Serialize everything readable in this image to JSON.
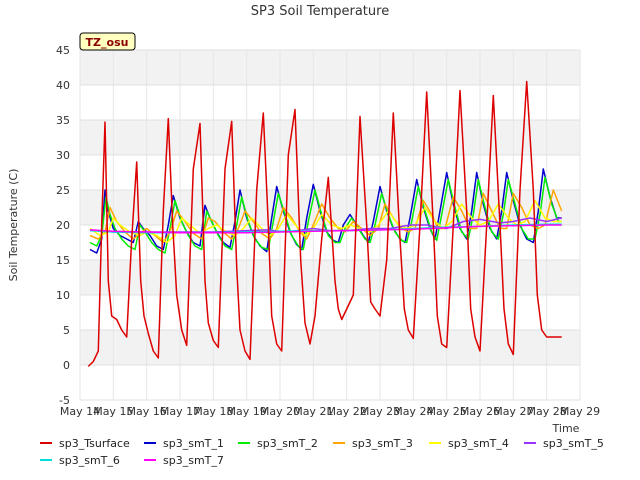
{
  "chart_data": {
    "type": "line",
    "title": "SP3 Soil Temperature",
    "xlabel": "Time",
    "ylabel": "Soil Temperature (C)",
    "ylim": [
      -5,
      45
    ],
    "xlim": [
      14,
      29
    ],
    "y_ticks": [
      -5,
      0,
      5,
      10,
      15,
      20,
      25,
      30,
      35,
      40,
      45
    ],
    "x_ticks": [
      {
        "value": 14,
        "label": "May 14"
      },
      {
        "value": 15,
        "label": "May 15"
      },
      {
        "value": 16,
        "label": "May 16"
      },
      {
        "value": 17,
        "label": "May 17"
      },
      {
        "value": 18,
        "label": "May 18"
      },
      {
        "value": 19,
        "label": "May 19"
      },
      {
        "value": 20,
        "label": "May 20"
      },
      {
        "value": 21,
        "label": "May 21"
      },
      {
        "value": 22,
        "label": "May 22"
      },
      {
        "value": 23,
        "label": "May 23"
      },
      {
        "value": 24,
        "label": "May 24"
      },
      {
        "value": 25,
        "label": "May 25"
      },
      {
        "value": 26,
        "label": "May 26"
      },
      {
        "value": 27,
        "label": "May 27"
      },
      {
        "value": 28,
        "label": "May 28"
      },
      {
        "value": 29,
        "label": "May 29"
      }
    ],
    "badge": "TZ_osu",
    "legend_position": "bottom",
    "series": [
      {
        "name": "sp3_Tsurface",
        "color": "#dd0000",
        "x": [
          14.25,
          14.4,
          14.55,
          14.65,
          14.75,
          14.85,
          14.95,
          15.1,
          15.25,
          15.4,
          15.55,
          15.7,
          15.82,
          15.92,
          16.05,
          16.2,
          16.35,
          16.5,
          16.65,
          16.78,
          16.9,
          17.05,
          17.2,
          17.4,
          17.6,
          17.75,
          17.85,
          18.0,
          18.15,
          18.35,
          18.55,
          18.7,
          18.8,
          18.95,
          19.1,
          19.3,
          19.5,
          19.65,
          19.75,
          19.9,
          20.05,
          20.25,
          20.45,
          20.62,
          20.75,
          20.9,
          21.05,
          21.25,
          21.45,
          21.65,
          21.75,
          21.85,
          22.0,
          22.2,
          22.4,
          22.6,
          22.72,
          22.85,
          23.0,
          23.2,
          23.4,
          23.6,
          23.73,
          23.85,
          24.0,
          24.2,
          24.4,
          24.6,
          24.72,
          24.85,
          25.0,
          25.2,
          25.4,
          25.6,
          25.72,
          25.85,
          26.0,
          26.2,
          26.4,
          26.6,
          26.72,
          26.85,
          27.0,
          27.2,
          27.4,
          27.6,
          27.72,
          27.85,
          28.0,
          28.2,
          28.35,
          28.45
        ],
        "y": [
          -0.2,
          0.5,
          2.0,
          20.0,
          34.7,
          12.0,
          7.0,
          6.5,
          5.0,
          4.0,
          18.0,
          29.0,
          12.0,
          7.0,
          4.5,
          2.0,
          1.0,
          22.0,
          35.2,
          20.0,
          10.0,
          5.0,
          2.8,
          28.0,
          34.5,
          12.0,
          6.0,
          3.5,
          2.5,
          28.0,
          34.8,
          14.0,
          5.0,
          2.0,
          0.8,
          25.0,
          36.0,
          20.0,
          7.0,
          3.0,
          2.0,
          30.0,
          36.5,
          15.0,
          6.0,
          3.0,
          7.0,
          18.0,
          26.8,
          12.0,
          8.0,
          6.5,
          8.0,
          10.0,
          35.5,
          20.0,
          9.0,
          8.0,
          7.0,
          15.0,
          36.0,
          18.0,
          8.0,
          5.0,
          3.8,
          20.0,
          39.0,
          20.0,
          7.0,
          3.0,
          2.5,
          20.0,
          39.2,
          22.0,
          8.0,
          4.0,
          2.0,
          20.0,
          38.5,
          20.0,
          8.0,
          3.0,
          1.5,
          25.0,
          40.5,
          25.0,
          10.0,
          5.0,
          4.0,
          4.0,
          4.0,
          4.0
        ]
      },
      {
        "name": "sp3_smT_1",
        "color": "#0000cc",
        "x": [
          14.3,
          14.5,
          14.65,
          14.75,
          14.85,
          15.0,
          15.2,
          15.4,
          15.6,
          15.75,
          15.9,
          16.1,
          16.3,
          16.5,
          16.65,
          16.8,
          17.0,
          17.2,
          17.4,
          17.6,
          17.75,
          17.9,
          18.1,
          18.3,
          18.5,
          18.65,
          18.8,
          19.0,
          19.2,
          19.4,
          19.6,
          19.75,
          19.9,
          20.1,
          20.3,
          20.5,
          20.65,
          20.8,
          21.0,
          21.2,
          21.4,
          21.6,
          21.75,
          21.9,
          22.1,
          22.3,
          22.5,
          22.65,
          22.8,
          23.0,
          23.2,
          23.4,
          23.6,
          23.75,
          23.9,
          24.1,
          24.3,
          24.5,
          24.65,
          24.8,
          25.0,
          25.2,
          25.4,
          25.6,
          25.75,
          25.9,
          26.1,
          26.3,
          26.5,
          26.65,
          26.8,
          27.0,
          27.2,
          27.4,
          27.6,
          27.75,
          27.9,
          28.1,
          28.3,
          28.45
        ],
        "y": [
          16.5,
          16.0,
          18.0,
          25.0,
          22.0,
          19.5,
          18.5,
          18.0,
          17.5,
          20.5,
          19.5,
          18.5,
          17.0,
          16.5,
          20.0,
          24.2,
          21.0,
          19.0,
          17.5,
          17.0,
          22.8,
          21.0,
          19.0,
          17.5,
          16.8,
          20.5,
          25.0,
          21.0,
          18.5,
          17.0,
          16.2,
          21.0,
          25.5,
          22.0,
          19.0,
          17.2,
          16.5,
          21.0,
          25.8,
          22.0,
          19.0,
          17.8,
          17.5,
          20.0,
          21.5,
          20.0,
          18.5,
          17.5,
          20.5,
          25.5,
          22.0,
          19.5,
          18.0,
          17.5,
          21.0,
          26.5,
          22.5,
          19.5,
          18.0,
          22.0,
          27.5,
          23.0,
          19.5,
          18.0,
          22.0,
          27.5,
          23.0,
          19.5,
          18.0,
          22.0,
          27.5,
          23.5,
          20.0,
          18.0,
          17.5,
          22.0,
          28.0,
          24.0,
          21.0,
          21.0
        ]
      },
      {
        "name": "sp3_smT_2",
        "color": "#00ee00",
        "x": [
          14.3,
          14.5,
          14.65,
          14.78,
          14.9,
          15.05,
          15.25,
          15.45,
          15.65,
          15.8,
          15.95,
          16.15,
          16.35,
          16.55,
          16.7,
          16.85,
          17.05,
          17.25,
          17.45,
          17.65,
          17.8,
          17.95,
          18.15,
          18.35,
          18.55,
          18.7,
          18.85,
          19.05,
          19.25,
          19.45,
          19.65,
          19.8,
          19.95,
          20.15,
          20.35,
          20.55,
          20.7,
          20.85,
          21.05,
          21.25,
          21.45,
          21.65,
          21.8,
          21.95,
          22.15,
          22.35,
          22.55,
          22.7,
          22.85,
          23.05,
          23.25,
          23.45,
          23.65,
          23.8,
          23.95,
          24.15,
          24.35,
          24.55,
          24.7,
          24.85,
          25.05,
          25.25,
          25.45,
          25.65,
          25.8,
          25.95,
          26.15,
          26.35,
          26.55,
          26.7,
          26.85,
          27.05,
          27.25,
          27.45,
          27.65,
          27.8,
          27.95,
          28.15,
          28.35,
          28.45
        ],
        "y": [
          17.5,
          17.0,
          18.5,
          24.0,
          21.5,
          19.5,
          18.0,
          17.0,
          16.5,
          20.0,
          19.0,
          17.5,
          16.5,
          16.0,
          19.5,
          23.5,
          20.5,
          18.5,
          17.0,
          16.5,
          22.0,
          20.5,
          18.5,
          17.0,
          16.5,
          20.0,
          24.0,
          20.5,
          18.0,
          16.8,
          16.5,
          20.5,
          24.5,
          21.5,
          18.5,
          17.0,
          16.5,
          20.5,
          25.0,
          21.5,
          18.5,
          17.5,
          17.5,
          19.5,
          21.0,
          19.5,
          18.0,
          17.5,
          20.0,
          24.5,
          21.5,
          19.0,
          17.8,
          17.5,
          20.5,
          25.5,
          22.0,
          19.0,
          17.8,
          21.5,
          26.5,
          22.5,
          19.0,
          18.0,
          21.5,
          26.5,
          22.5,
          19.0,
          18.0,
          21.5,
          26.5,
          23.0,
          19.5,
          18.0,
          18.0,
          21.5,
          26.8,
          23.0,
          20.5,
          20.5
        ]
      },
      {
        "name": "sp3_smT_3",
        "color": "#ffa500",
        "x": [
          14.3,
          14.55,
          14.75,
          14.9,
          15.1,
          15.35,
          15.6,
          15.85,
          16.0,
          16.25,
          16.5,
          16.7,
          16.9,
          17.15,
          17.4,
          17.65,
          17.85,
          18.05,
          18.3,
          18.55,
          18.75,
          18.95,
          19.2,
          19.45,
          19.7,
          19.9,
          20.1,
          20.35,
          20.6,
          20.8,
          21.0,
          21.25,
          21.5,
          21.75,
          21.95,
          22.2,
          22.45,
          22.7,
          22.95,
          23.15,
          23.4,
          23.65,
          23.85,
          24.05,
          24.3,
          24.55,
          24.75,
          24.95,
          25.2,
          25.45,
          25.7,
          25.9,
          26.1,
          26.35,
          26.6,
          26.8,
          27.0,
          27.25,
          27.5,
          27.75,
          27.95,
          28.2,
          28.45
        ],
        "y": [
          18.5,
          18.0,
          19.0,
          22.5,
          20.5,
          19.0,
          18.0,
          19.0,
          19.5,
          18.5,
          17.5,
          19.0,
          22.0,
          20.5,
          18.8,
          18.0,
          21.0,
          20.5,
          19.0,
          18.0,
          19.5,
          22.0,
          20.5,
          18.8,
          18.0,
          19.5,
          22.5,
          21.0,
          19.0,
          18.0,
          20.0,
          23.0,
          21.0,
          19.5,
          19.0,
          20.5,
          19.5,
          18.5,
          19.5,
          23.0,
          21.0,
          19.5,
          19.0,
          19.5,
          23.5,
          21.5,
          19.5,
          19.5,
          24.0,
          22.0,
          19.5,
          19.5,
          24.5,
          22.0,
          19.5,
          19.5,
          24.5,
          22.5,
          20.0,
          19.5,
          20.0,
          25.0,
          22.0
        ]
      },
      {
        "name": "sp3_smT_4",
        "color": "#ffff00",
        "x": [
          14.3,
          14.6,
          14.85,
          15.0,
          15.2,
          15.5,
          15.8,
          16.0,
          16.3,
          16.6,
          16.85,
          17.05,
          17.3,
          17.6,
          17.85,
          18.1,
          18.4,
          18.65,
          18.9,
          19.15,
          19.45,
          19.7,
          19.95,
          20.2,
          20.5,
          20.75,
          21.0,
          21.25,
          21.55,
          21.85,
          22.1,
          22.4,
          22.7,
          22.95,
          23.25,
          23.55,
          23.8,
          24.05,
          24.35,
          24.65,
          24.9,
          25.15,
          25.45,
          25.75,
          26.0,
          26.25,
          26.55,
          26.85,
          27.1,
          27.35,
          27.65,
          27.95,
          28.2,
          28.45
        ],
        "y": [
          19.5,
          18.5,
          19.0,
          21.0,
          20.0,
          19.0,
          18.5,
          19.0,
          18.5,
          17.5,
          18.5,
          21.0,
          20.0,
          18.8,
          19.5,
          20.0,
          19.0,
          18.5,
          19.5,
          21.0,
          19.5,
          18.5,
          19.5,
          21.5,
          19.8,
          18.5,
          19.5,
          21.5,
          20.0,
          19.5,
          20.0,
          19.5,
          19.0,
          20.0,
          22.0,
          20.0,
          19.5,
          20.0,
          22.5,
          20.5,
          19.5,
          20.5,
          23.0,
          21.0,
          20.0,
          20.5,
          23.0,
          21.0,
          20.0,
          20.5,
          23.5,
          21.0,
          20.5,
          20.5
        ]
      },
      {
        "name": "sp3_smT_5",
        "color": "#9933ff",
        "x": [
          14.3,
          15.0,
          16.0,
          17.0,
          18.0,
          19.0,
          19.6,
          20.2,
          21.0,
          21.5,
          22.0,
          22.7,
          23.3,
          23.9,
          24.4,
          25.0,
          25.5,
          26.0,
          26.6,
          27.0,
          27.5,
          28.0,
          28.45
        ],
        "y": [
          19.3,
          19.0,
          19.0,
          19.0,
          19.0,
          19.2,
          19.3,
          19.0,
          19.5,
          19.2,
          19.2,
          19.5,
          19.5,
          20.0,
          20.0,
          19.5,
          20.5,
          20.8,
          20.3,
          20.5,
          21.0,
          20.5,
          21.0
        ]
      },
      {
        "name": "sp3_smT_6",
        "color": "#00dddd",
        "x": [
          14.3,
          15.0,
          16.0,
          17.0,
          18.0,
          19.0,
          20.0,
          21.0,
          22.0,
          23.0,
          24.0,
          25.0,
          26.0,
          27.0,
          28.0,
          28.45
        ],
        "y": [
          19.2,
          19.0,
          18.9,
          18.9,
          18.9,
          19.0,
          19.1,
          19.2,
          19.2,
          19.3,
          19.5,
          19.7,
          19.8,
          20.0,
          20.1,
          20.1
        ]
      },
      {
        "name": "sp3_smT_7",
        "color": "#ff00ff",
        "x": [
          14.3,
          15.0,
          16.0,
          17.0,
          18.0,
          19.0,
          20.0,
          21.0,
          22.0,
          23.0,
          24.0,
          25.0,
          26.0,
          27.0,
          28.0,
          28.45
        ],
        "y": [
          19.3,
          19.1,
          19.0,
          18.9,
          18.9,
          18.9,
          19.0,
          19.1,
          19.2,
          19.3,
          19.4,
          19.6,
          19.8,
          19.9,
          20.0,
          20.0
        ]
      }
    ]
  }
}
